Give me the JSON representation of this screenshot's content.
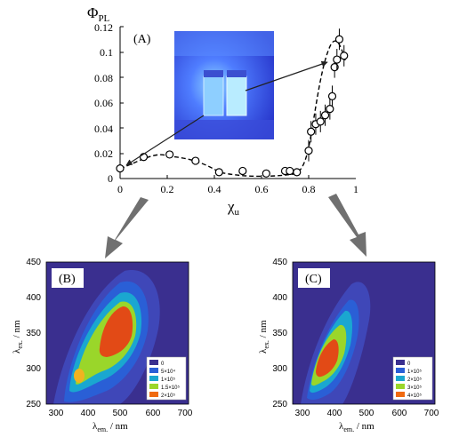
{
  "panel_a": {
    "panel_label": "(A)",
    "y_axis_symbol": "Φ",
    "y_axis_subscript": "PL",
    "x_axis_symbol": "χ",
    "x_axis_subscript": "u",
    "inset_photo_icon": "vial-photo-under-uv-light"
  },
  "panel_b": {
    "panel_label": "(B)",
    "xlabel_symbol": "λ",
    "xlabel_subscript": "em.",
    "xlabel_unit": " / nm",
    "ylabel_symbol": "λ",
    "ylabel_subscript": "ex.",
    "ylabel_unit": " / nm"
  },
  "panel_c": {
    "panel_label": "(C)",
    "xlabel_symbol": "λ",
    "xlabel_subscript": "em.",
    "xlabel_unit": " / nm",
    "ylabel_symbol": "λ",
    "ylabel_subscript": "ex.",
    "ylabel_unit": " / nm"
  },
  "colors": {
    "map_background": "#3a2f8f",
    "arrow_gray": "#707070",
    "inset_blue": "#3d5cff",
    "level_0": "#3a2f8f",
    "level_1": "#2a5fd6",
    "level_2": "#1aa7d0",
    "level_3": "#9ad62a",
    "level_4": "#f06a10"
  },
  "chart_data": [
    {
      "type": "scatter",
      "panel": "A",
      "x": [
        0,
        0.1,
        0.21,
        0.32,
        0.42,
        0.52,
        0.62,
        0.7,
        0.72,
        0.75,
        0.8,
        0.81,
        0.83,
        0.85,
        0.87,
        0.89,
        0.9,
        0.91,
        0.92,
        0.93,
        0.95
      ],
      "y": [
        0.008,
        0.017,
        0.019,
        0.014,
        0.005,
        0.006,
        0.004,
        0.006,
        0.006,
        0.005,
        0.022,
        0.037,
        0.043,
        0.045,
        0.05,
        0.055,
        0.065,
        0.088,
        0.094,
        0.11,
        0.097
      ],
      "xlim": [
        0,
        1
      ],
      "ylim": [
        0,
        0.12
      ],
      "xticks": [
        "0",
        "0.2",
        "0.4",
        "0.6",
        "0.8",
        "1"
      ],
      "yticks": [
        "0",
        "0.02",
        "0.04",
        "0.06",
        "0.08",
        "0.1",
        "0.12"
      ],
      "ylabel": "ΦPL",
      "xlabel": "χu",
      "grid": false
    },
    {
      "type": "heatmap",
      "panel": "B",
      "xlim": [
        260,
        700
      ],
      "ylim": [
        250,
        450
      ],
      "xticks": [
        "300",
        "400",
        "500",
        "600",
        "700"
      ],
      "yticks": [
        "250",
        "300",
        "350",
        "400",
        "450"
      ],
      "xlabel": "λem. / nm",
      "ylabel": "λex. / nm",
      "legend_position": "bottom-right",
      "legend": [
        "0",
        "5×10⁴",
        "1×10⁵",
        "1.5×10⁵",
        "2×10⁵"
      ],
      "peak": [
        480,
        365
      ]
    },
    {
      "type": "heatmap",
      "panel": "C",
      "xlim": [
        260,
        700
      ],
      "ylim": [
        250,
        450
      ],
      "xticks": [
        "300",
        "400",
        "500",
        "600",
        "700"
      ],
      "yticks": [
        "250",
        "300",
        "350",
        "400",
        "450"
      ],
      "xlabel": "λem. / nm",
      "ylabel": "λex. / nm",
      "legend_position": "bottom-right",
      "legend": [
        "0",
        "1×10⁵",
        "2×10⁵",
        "3×10⁵",
        "4×10⁵"
      ],
      "peak": [
        370,
        320
      ]
    }
  ]
}
